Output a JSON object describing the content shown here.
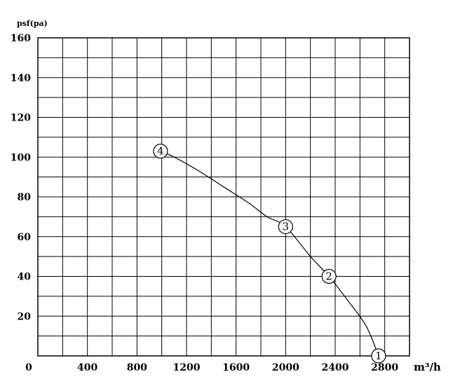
{
  "chart_data": {
    "type": "line",
    "ylabel": "psf(pa)",
    "xlabel": "m³/h",
    "xlim": [
      0,
      3000
    ],
    "ylim": [
      0,
      160
    ],
    "x_ticks": [
      0,
      400,
      800,
      1200,
      1600,
      2000,
      2400,
      2800
    ],
    "y_ticks": [
      20,
      40,
      60,
      80,
      100,
      120,
      140,
      160
    ],
    "grid": true,
    "grid_x_step": 200,
    "grid_y_step": 10,
    "series": [
      {
        "x": [
          990,
          1100,
          1300,
          1500,
          1700,
          1850,
          2000,
          2200,
          2350,
          2500,
          2650,
          2750
        ],
        "y": [
          103,
          100,
          93,
          85,
          77,
          70,
          65,
          50,
          40,
          28,
          15,
          0
        ]
      }
    ],
    "annotations": [
      {
        "label": "1",
        "x": 2750,
        "y": 0
      },
      {
        "label": "2",
        "x": 2350,
        "y": 40
      },
      {
        "label": "3",
        "x": 2000,
        "y": 65
      },
      {
        "label": "4",
        "x": 990,
        "y": 103
      }
    ]
  }
}
